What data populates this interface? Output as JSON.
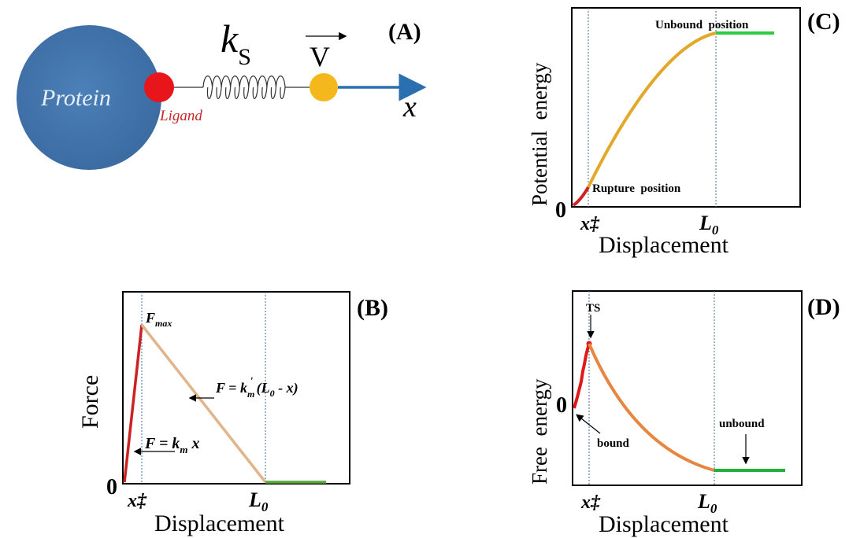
{
  "panel_a": {
    "label": "(A)",
    "protein": "Protein",
    "ligand": "Ligand",
    "spring_symbol": "k",
    "spring_sub": "S",
    "velocity": "V",
    "axis": "x"
  },
  "panel_b": {
    "label": "(B)",
    "ylabel": "Force",
    "xlabel": "Displacement",
    "origin": "0",
    "tick_x1": "x‡",
    "tick_x2": "L",
    "tick_x2_sub": "0",
    "fmax": "F",
    "fmax_sub": "max",
    "eq1_lhs": "F = k",
    "eq1_sub": "m",
    "eq1_rhs": " x",
    "eq2_lhs": "F = k",
    "eq2_sub": "m",
    "eq2_sup": "ʹ",
    "eq2_rhs": " (L",
    "eq2_rhs_sub": "0",
    "eq2_end": " - x)"
  },
  "panel_c": {
    "label": "(C)",
    "ylabel": "Potential  energy",
    "xlabel": "Displacement",
    "origin": "0",
    "tick_x1": "x‡",
    "tick_x2": "L",
    "tick_x2_sub": "0",
    "ann_unbound": "Unbound  position",
    "ann_rupture": "Rupture  position"
  },
  "panel_d": {
    "label": "(D)",
    "ylabel": "Free  energy",
    "xlabel": "Displacement",
    "origin": "0",
    "tick_x1": "x‡",
    "tick_x2": "L",
    "tick_x2_sub": "0",
    "ann_ts": "TS",
    "ann_bound": "bound",
    "ann_unbound": "unbound"
  },
  "colors": {
    "protein": "#3f72a8",
    "ligand": "#e8151b",
    "bead": "#f5b81c",
    "axis_arrow": "#2a6fb0",
    "red_segment": "#cc2222",
    "orange_curve": "#e3a82b",
    "tan_line": "#e2b48a",
    "green": "#2ecc40",
    "dotted": "#3a6f9e"
  }
}
